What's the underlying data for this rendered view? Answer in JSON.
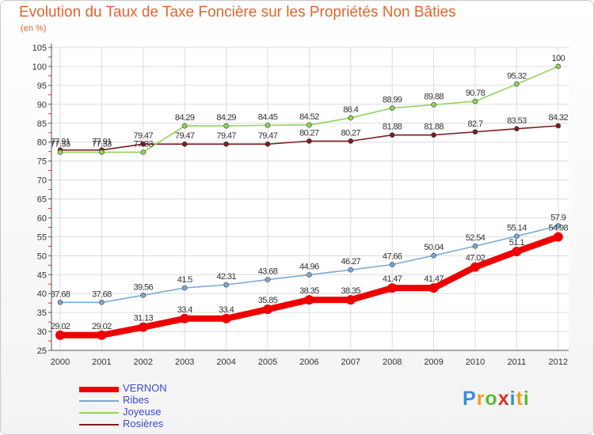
{
  "title": "Evolution du Taux de Taxe Foncière sur les Propriétés Non Bâties",
  "unit_label": "(en %)",
  "logo": {
    "text": "Proxiti",
    "colors": [
      "#3a8fd6",
      "#f0a020",
      "#5cba3c",
      "#d8342c"
    ]
  },
  "chart_data": {
    "type": "line",
    "title": "Evolution du Taux de Taxe Foncière sur les Propriétés Non Bâties",
    "xlabel": "",
    "ylabel": "(en %)",
    "ylim": [
      25,
      105
    ],
    "yticks": [
      25,
      30,
      35,
      40,
      45,
      50,
      55,
      60,
      65,
      70,
      75,
      80,
      85,
      90,
      95,
      100,
      105
    ],
    "grid": true,
    "legend_position": "bottom-left",
    "x": [
      "2000",
      "2001",
      "2002",
      "2003",
      "2004",
      "2005",
      "2006",
      "2007",
      "2008",
      "2009",
      "2010",
      "2011",
      "2012"
    ],
    "series": [
      {
        "name": "Rosières",
        "color": "#7a1e22",
        "values": [
          77.91,
          77.91,
          79.47,
          79.47,
          79.47,
          79.47,
          80.27,
          80.27,
          81.88,
          81.88,
          82.7,
          83.53,
          84.32
        ],
        "labels": [
          "77.91",
          "77.91",
          "79.47",
          "79.47",
          "79.47",
          "79.47",
          "80.27",
          "80.27",
          "81.88",
          "81.88",
          "82.7",
          "83.53",
          "84.32"
        ]
      },
      {
        "name": "Joyeuse",
        "color": "#8ed45a",
        "values": [
          77.33,
          77.33,
          77.33,
          84.29,
          84.29,
          84.45,
          84.52,
          86.4,
          88.99,
          89.88,
          90.78,
          95.32,
          100
        ],
        "labels": [
          "77.33",
          "77.33",
          "77.33",
          "84.29",
          "84.29",
          "84.45",
          "84.52",
          "86.4",
          "88.99",
          "89.88",
          "90.78",
          "95.32",
          "100"
        ]
      },
      {
        "name": "Ribes",
        "color": "#7aaad6",
        "values": [
          37.68,
          37.68,
          39.56,
          41.5,
          42.31,
          43.68,
          44.96,
          46.27,
          47.66,
          50.04,
          52.54,
          55.14,
          57.9
        ],
        "labels": [
          "37.68",
          "37.68",
          "39.56",
          "41.5",
          "42.31",
          "43.68",
          "44.96",
          "46.27",
          "47.66",
          "50.04",
          "52.54",
          "55.14",
          "57.9"
        ]
      },
      {
        "name": "VERNON",
        "color": "#ee0000",
        "values": [
          29.02,
          29.02,
          31.13,
          33.4,
          33.4,
          35.85,
          38.35,
          38.35,
          41.47,
          41.47,
          47.02,
          51.1,
          54.98
        ],
        "labels": [
          "29.02",
          "29.02",
          "31.13",
          "33.4",
          "33.4",
          "35.85",
          "38.35",
          "38.35",
          "41.47",
          "41.47",
          "47.02",
          "51.1",
          "54.98"
        ]
      }
    ]
  }
}
